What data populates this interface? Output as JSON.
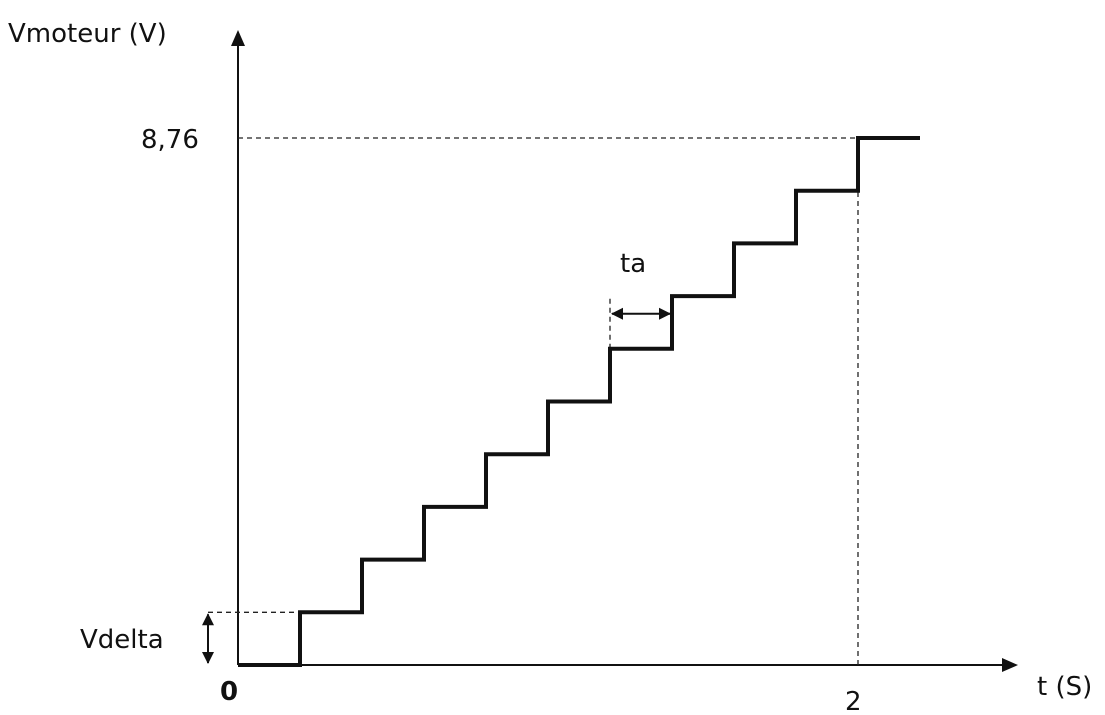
{
  "chart_data": {
    "type": "line",
    "title": "",
    "ylabel": "Vmoteur (V)",
    "xlabel": "t (S)",
    "origin_label": "0",
    "x_tick_label": "2",
    "y_tick_label": "8,76",
    "step_annotation_label": "ta",
    "delta_annotation_label": "Vdelta",
    "xlim": [
      0,
      2.2
    ],
    "ylim": [
      0,
      10.5
    ],
    "series": [
      {
        "line_style": "step",
        "color": "#111111",
        "x": [
          0,
          0.2,
          0.4,
          0.6,
          0.8,
          1.0,
          1.2,
          1.4,
          1.6,
          1.8,
          2.0,
          2.2
        ],
        "y": [
          0,
          0.876,
          1.752,
          2.628,
          3.504,
          4.38,
          5.256,
          6.132,
          7.008,
          7.884,
          8.76,
          8.76
        ]
      }
    ],
    "reference_lines": [
      {
        "axis": "y",
        "value": 8.76,
        "style": "dashed"
      },
      {
        "axis": "x",
        "value": 2,
        "style": "dashed"
      },
      {
        "axis": "y",
        "value": 0.876,
        "style": "dashed"
      },
      {
        "axis": "x",
        "value": 1.2,
        "style": "dashed"
      }
    ],
    "grid": false
  }
}
